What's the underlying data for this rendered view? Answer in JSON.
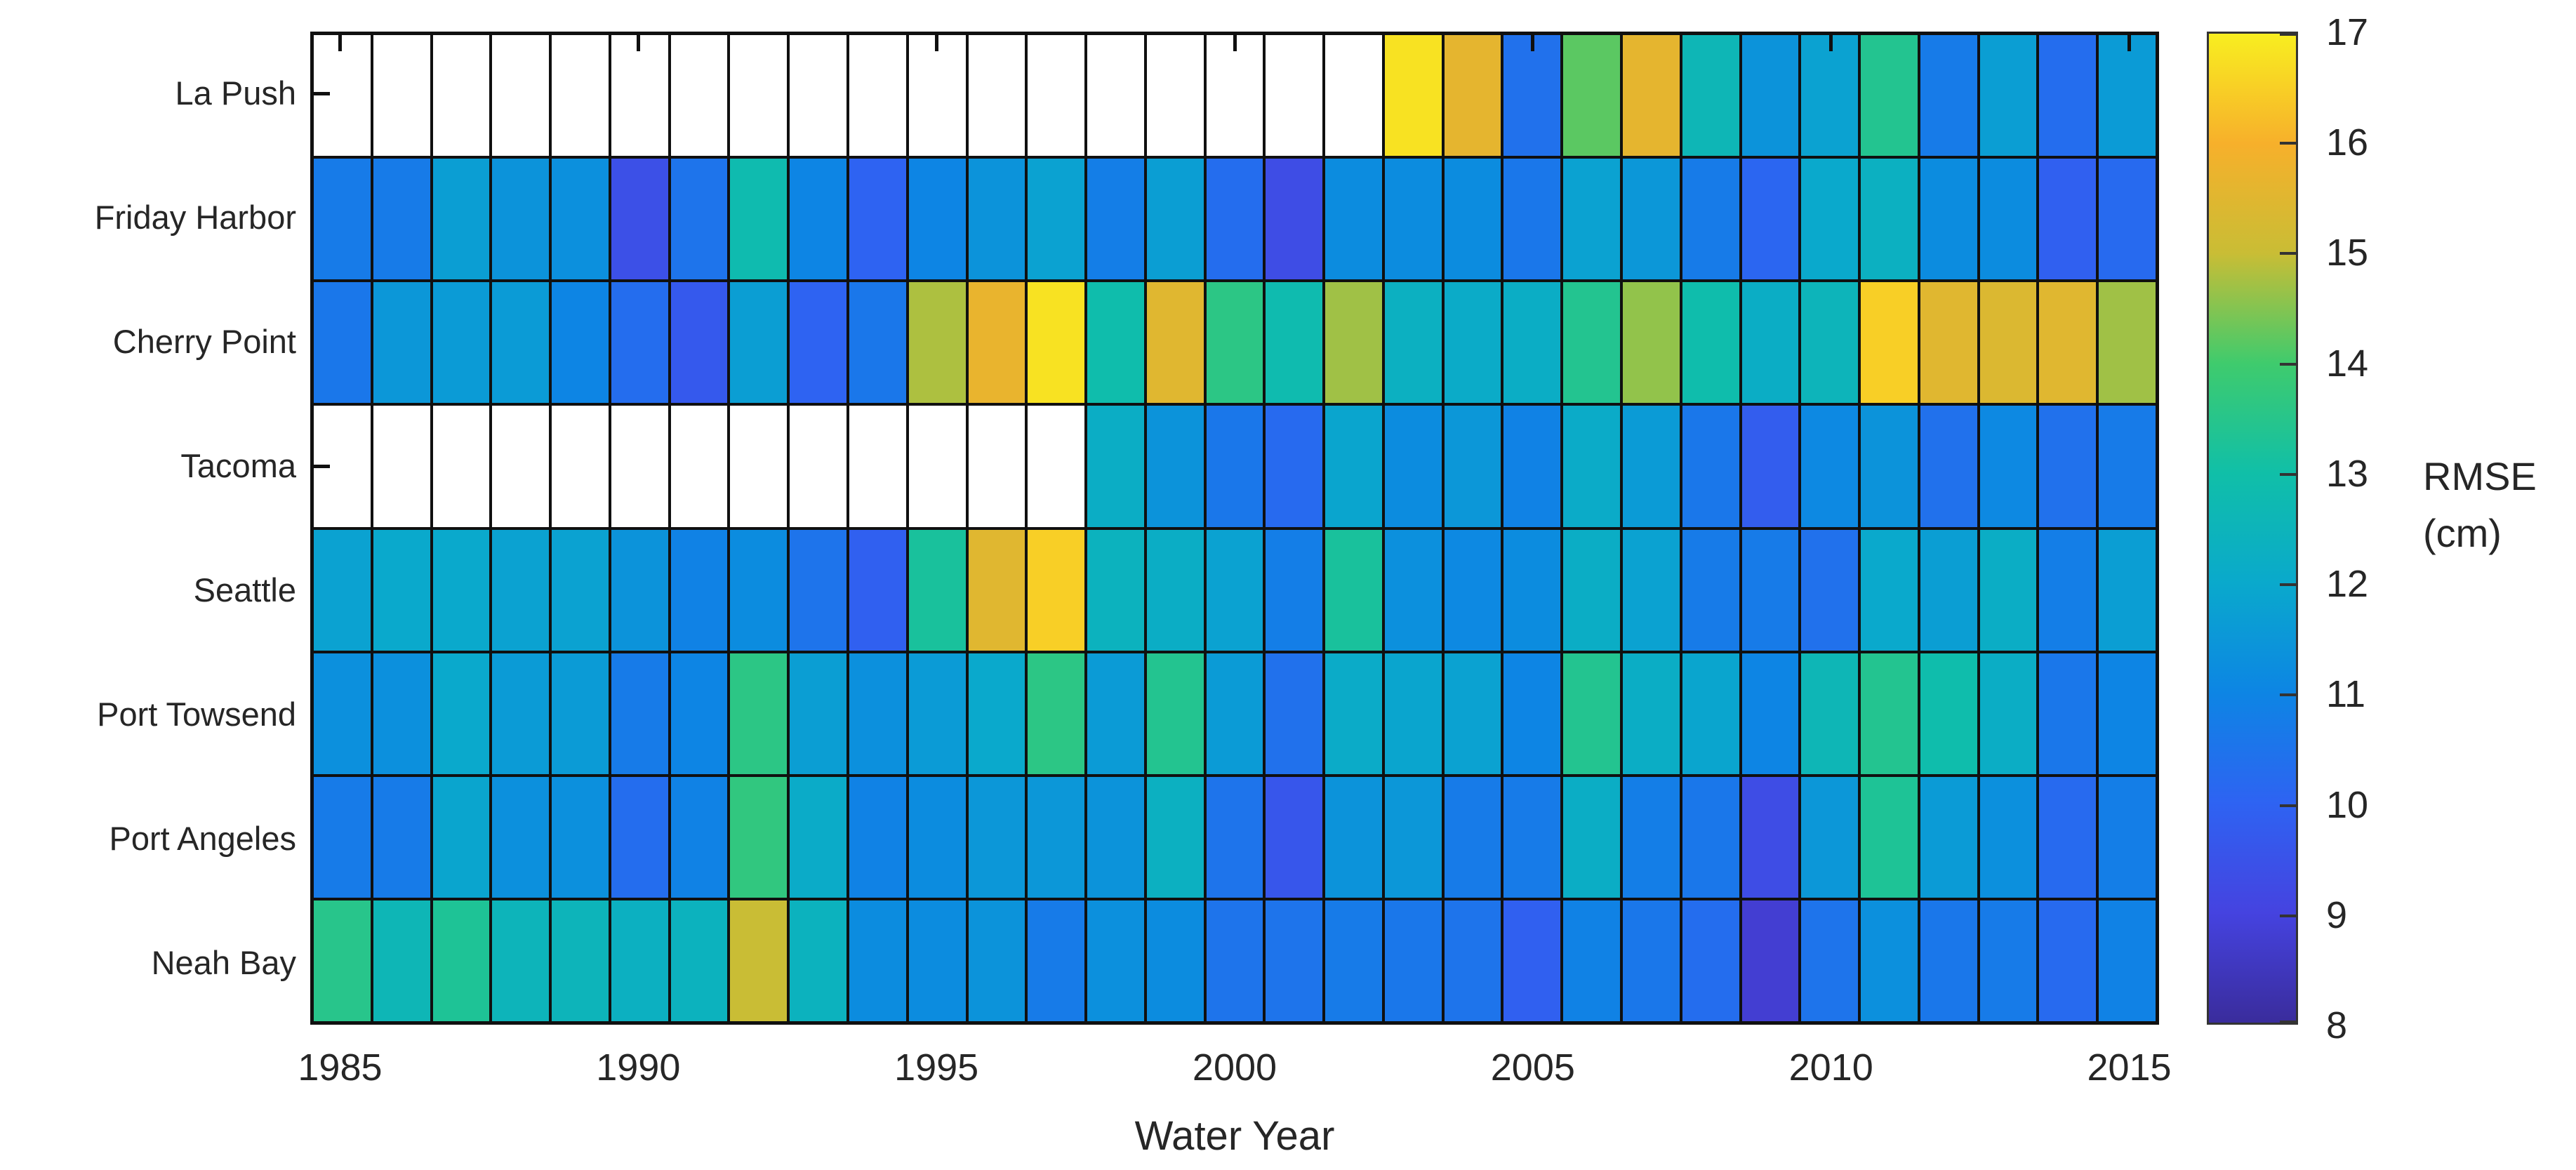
{
  "chart_data": {
    "type": "heatmap",
    "xlabel": "Water Year",
    "colorbar_label_lines": [
      "RMSE",
      "(cm)"
    ],
    "x_ticks": [
      1985,
      1990,
      1995,
      2000,
      2005,
      2010,
      2015
    ],
    "years": [
      1985,
      1986,
      1987,
      1988,
      1989,
      1990,
      1991,
      1992,
      1993,
      1994,
      1995,
      1996,
      1997,
      1998,
      1999,
      2000,
      2001,
      2002,
      2003,
      2004,
      2005,
      2006,
      2007,
      2008,
      2009,
      2010,
      2011,
      2012,
      2013,
      2014,
      2015
    ],
    "stations": [
      "La Push",
      "Friday Harbor",
      "Cherry Point",
      "Tacoma",
      "Seattle",
      "Port Towsend",
      "Port Angeles",
      "Neah Bay"
    ],
    "series": [
      {
        "name": "La Push",
        "values": [
          null,
          null,
          null,
          null,
          null,
          null,
          null,
          null,
          null,
          null,
          null,
          null,
          null,
          null,
          null,
          null,
          null,
          null,
          16.8,
          15.6,
          10.4,
          14.2,
          15.6,
          12.6,
          11.4,
          11.8,
          13.4,
          10.7,
          11.7,
          10.3,
          11.6
        ]
      },
      {
        "name": "Friday Harbor",
        "values": [
          10.7,
          10.7,
          11.7,
          11.4,
          11.3,
          9.4,
          10.5,
          12.8,
          11.0,
          10.0,
          11.0,
          11.4,
          11.8,
          10.8,
          11.7,
          10.3,
          9.3,
          11.2,
          11.2,
          11.2,
          10.6,
          11.8,
          11.5,
          10.7,
          10.1,
          12.0,
          12.3,
          11.2,
          11.2,
          9.9,
          10.2
        ]
      },
      {
        "name": "Cherry Point",
        "values": [
          10.6,
          11.5,
          11.6,
          11.6,
          11.0,
          10.3,
          9.7,
          11.7,
          10.0,
          10.6,
          14.8,
          15.7,
          16.8,
          12.9,
          15.5,
          13.6,
          12.8,
          14.7,
          12.3,
          12.1,
          12.2,
          13.4,
          14.6,
          12.9,
          12.2,
          12.5,
          16.5,
          15.5,
          15.4,
          15.5,
          14.7
        ]
      },
      {
        "name": "Tacoma",
        "values": [
          null,
          null,
          null,
          null,
          null,
          null,
          null,
          null,
          null,
          null,
          null,
          null,
          null,
          12.2,
          11.4,
          10.6,
          10.2,
          11.9,
          11.2,
          11.5,
          10.9,
          12.1,
          11.6,
          10.6,
          9.8,
          11.1,
          11.4,
          10.4,
          11.1,
          10.4,
          10.7
        ]
      },
      {
        "name": "Seattle",
        "values": [
          11.8,
          12.0,
          12.0,
          11.8,
          11.8,
          11.4,
          10.9,
          11.2,
          10.5,
          9.9,
          13.2,
          15.5,
          16.5,
          12.4,
          12.2,
          11.8,
          10.8,
          13.2,
          11.3,
          11.1,
          11.2,
          12.2,
          11.8,
          10.7,
          10.7,
          10.4,
          12.0,
          11.7,
          12.2,
          10.8,
          11.7
        ]
      },
      {
        "name": "Port Towsend",
        "values": [
          11.3,
          11.3,
          12.0,
          11.6,
          11.6,
          10.7,
          11.0,
          13.6,
          11.7,
          11.3,
          11.6,
          12.0,
          13.6,
          11.6,
          13.4,
          11.6,
          10.4,
          12.1,
          11.9,
          11.8,
          11.0,
          13.4,
          12.2,
          11.9,
          11.0,
          12.6,
          13.4,
          12.9,
          12.2,
          10.6,
          11.0
        ]
      },
      {
        "name": "Port Angeles",
        "values": [
          10.7,
          10.7,
          11.9,
          11.3,
          11.3,
          10.3,
          10.9,
          13.7,
          12.1,
          10.9,
          11.2,
          11.5,
          11.5,
          11.4,
          12.3,
          10.5,
          9.6,
          11.4,
          11.5,
          10.7,
          10.7,
          12.2,
          10.8,
          10.6,
          9.3,
          11.5,
          13.3,
          11.6,
          11.3,
          10.2,
          10.8
        ]
      },
      {
        "name": "Neah Bay",
        "values": [
          13.5,
          12.6,
          13.3,
          12.5,
          12.5,
          12.3,
          12.4,
          15.0,
          12.4,
          11.2,
          11.2,
          11.4,
          10.7,
          11.3,
          11.2,
          10.5,
          10.5,
          10.7,
          10.6,
          10.5,
          9.9,
          10.9,
          10.6,
          10.3,
          8.8,
          10.5,
          11.3,
          10.6,
          10.7,
          10.2,
          10.9
        ]
      }
    ],
    "value_range": [
      8,
      17
    ],
    "colorbar_ticks": [
      8,
      9,
      10,
      11,
      12,
      13,
      14,
      15,
      16,
      17
    ],
    "colormap_anchors": [
      "#3a2c9c",
      "#4543e0",
      "#2e63f2",
      "#0d85e4",
      "#0aa9cc",
      "#10bfa8",
      "#3fcb6d",
      "#c9bd35",
      "#f7b02b",
      "#f8ee20"
    ],
    "missing_color": "#ffffff",
    "gridline_color": "#101010",
    "legend_position": "right",
    "grid": "on"
  }
}
